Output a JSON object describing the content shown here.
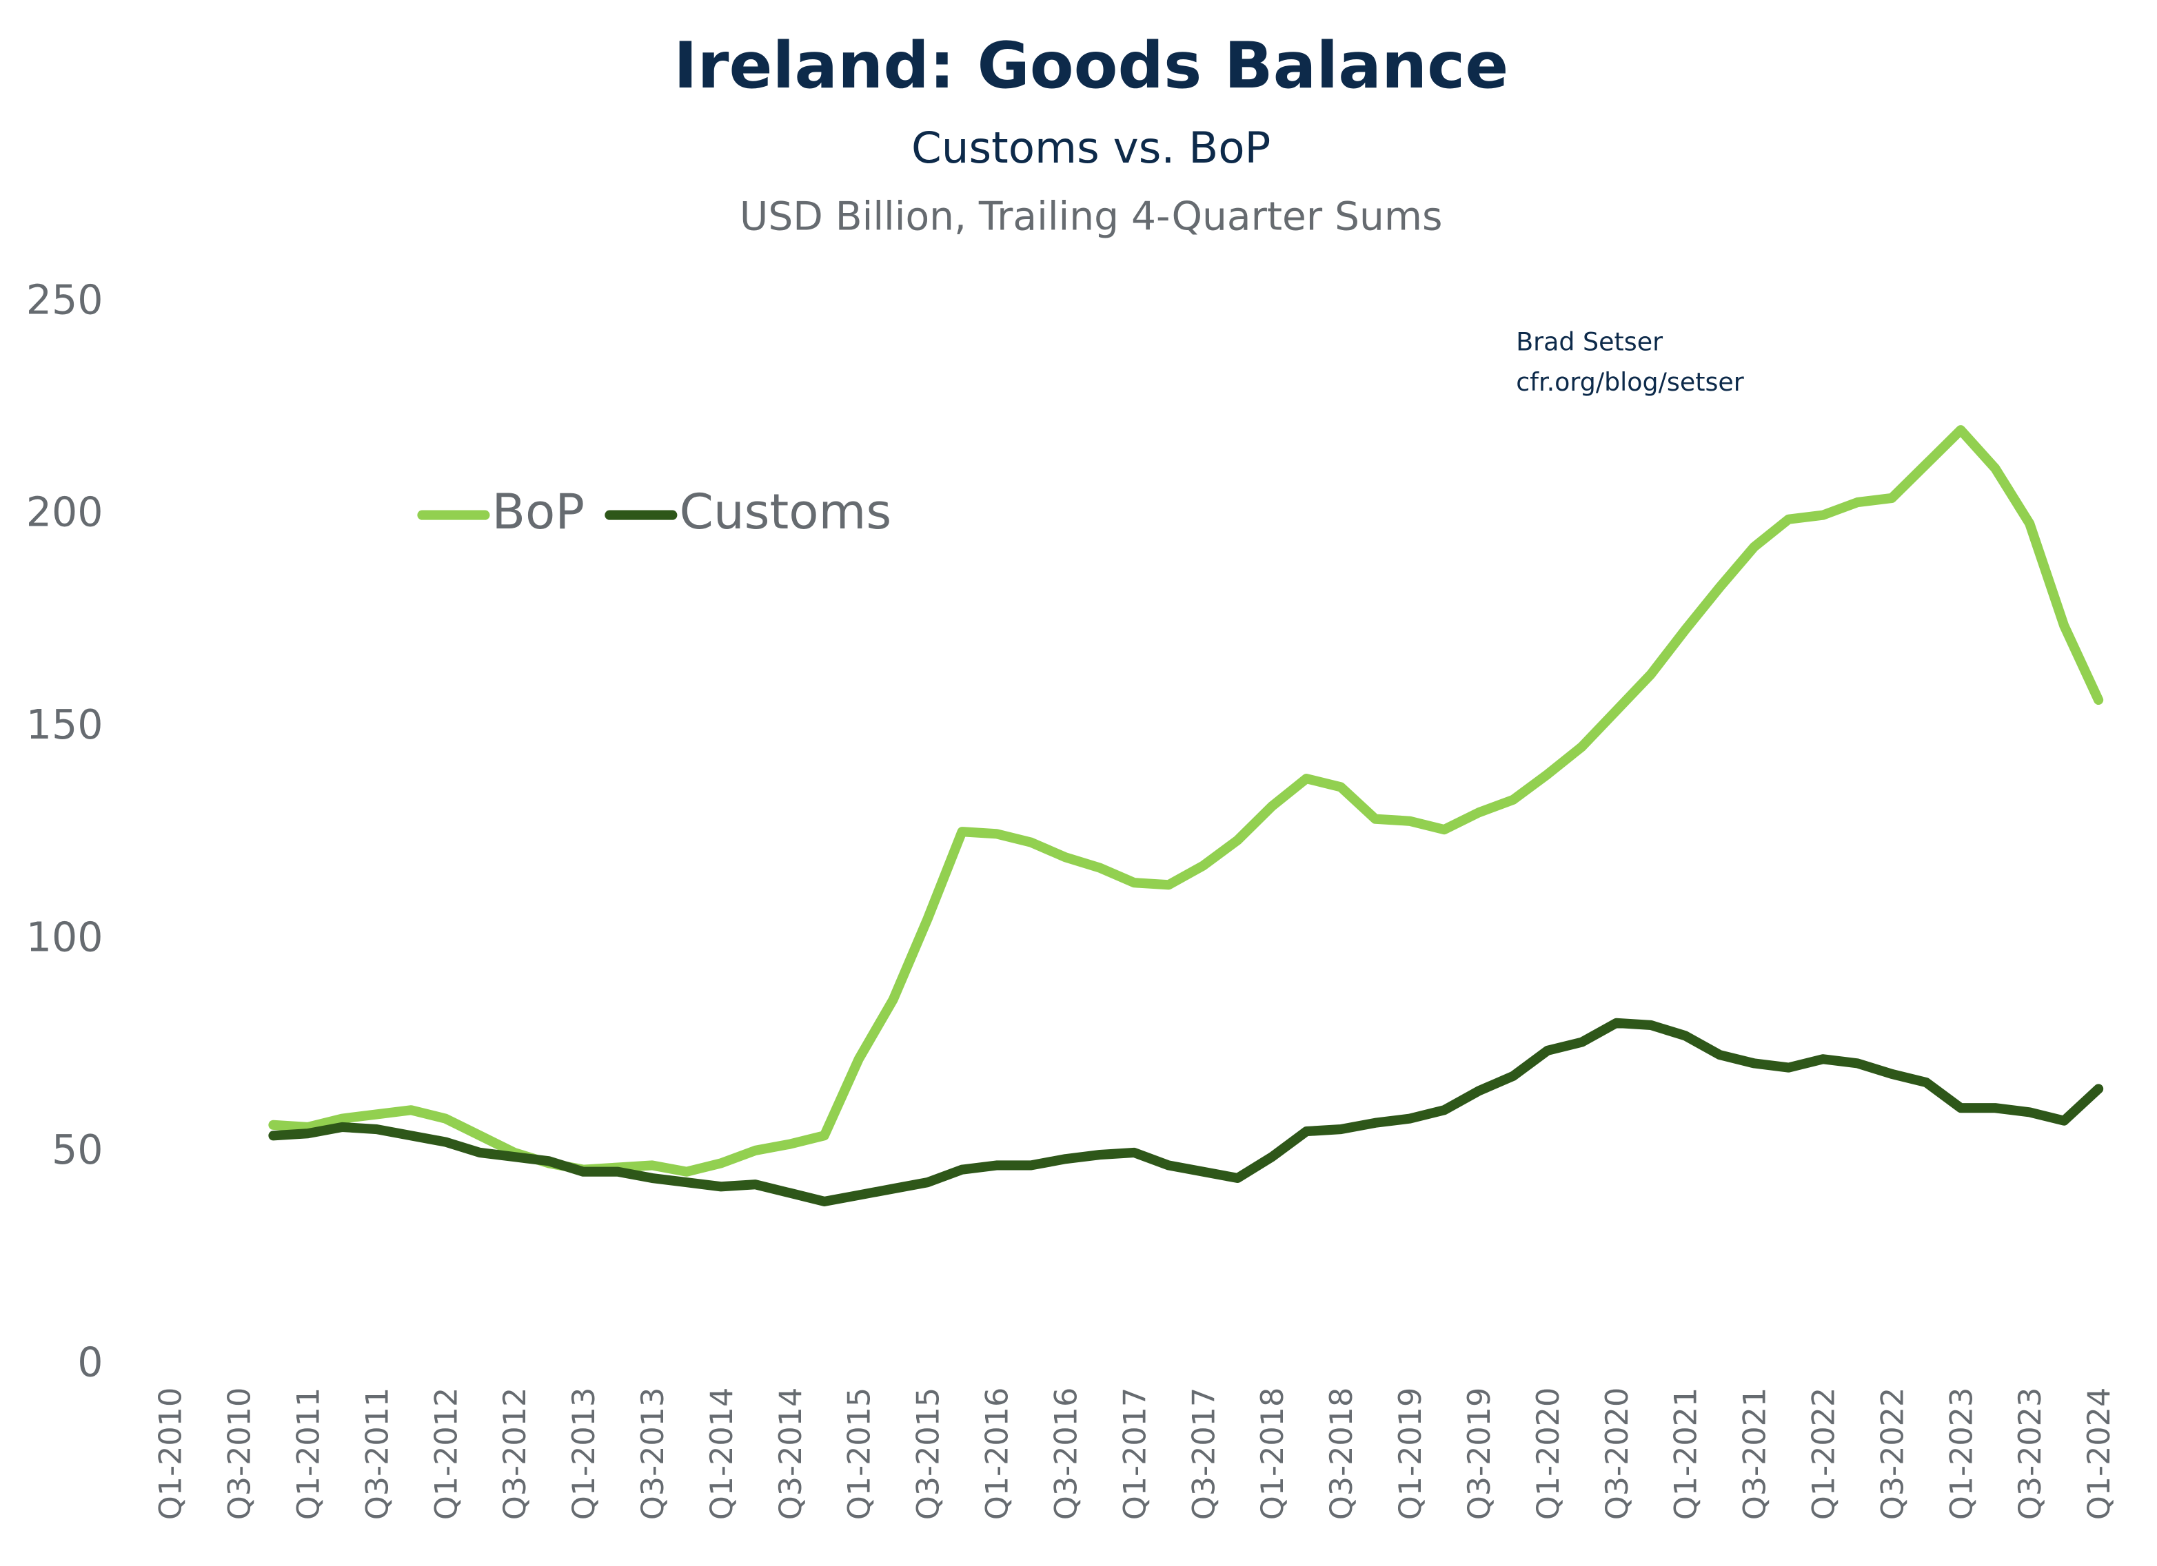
{
  "chart_data": {
    "type": "line",
    "title": "Ireland: Goods Balance",
    "subtitle": "Customs vs. BoP",
    "units": "USD Billion, Trailing 4-Quarter Sums",
    "annotations": [
      "Brad Setser",
      "cfr.org/blog/setser"
    ],
    "categories": [
      "Q1-2010",
      null,
      "Q3-2010",
      null,
      "Q1-2011",
      null,
      "Q3-2011",
      null,
      "Q1-2012",
      null,
      "Q3-2012",
      null,
      "Q1-2013",
      null,
      "Q3-2013",
      null,
      "Q1-2014",
      null,
      "Q3-2014",
      null,
      "Q1-2015",
      null,
      "Q3-2015",
      null,
      "Q1-2016",
      null,
      "Q3-2016",
      null,
      "Q1-2017",
      null,
      "Q3-2017",
      null,
      "Q1-2018",
      null,
      "Q3-2018",
      null,
      "Q1-2019",
      null,
      "Q3-2019",
      null,
      "Q1-2020",
      null,
      "Q3-2020",
      null,
      "Q1-2021",
      null,
      "Q3-2021",
      null,
      "Q1-2022",
      null,
      "Q3-2022",
      null,
      "Q1-2023",
      null,
      "Q3-2023",
      null,
      "Q1-2024"
    ],
    "series": [
      {
        "name": "BoP",
        "color": "#92d050",
        "values": [
          null,
          null,
          null,
          56.5,
          56,
          58,
          59,
          60,
          58,
          54,
          50,
          47.5,
          46,
          46.5,
          47,
          45.5,
          47.5,
          50.5,
          52,
          54,
          72,
          86,
          105,
          125.5,
          125,
          123,
          119.5,
          117,
          113.5,
          113,
          117.5,
          123.5,
          131.5,
          138,
          136,
          128.5,
          128,
          126,
          130,
          133,
          139,
          145.5,
          154,
          162.5,
          173,
          183,
          192.5,
          199,
          200,
          203,
          204,
          212,
          220,
          211,
          198,
          174,
          156.5
        ]
      },
      {
        "name": "Customs",
        "color": "#2e5719",
        "values": [
          null,
          null,
          null,
          54,
          54.5,
          56,
          55.5,
          54,
          52.5,
          50,
          49,
          48,
          45.5,
          45.5,
          44,
          43,
          42,
          42.5,
          40.5,
          38.5,
          40,
          41.5,
          43,
          46,
          47,
          47,
          48.5,
          49.5,
          50,
          47,
          45.5,
          44,
          49,
          55,
          55.5,
          57,
          58,
          60,
          64.5,
          68,
          74,
          76,
          80.5,
          80,
          77.5,
          73,
          71,
          70,
          72,
          71,
          68.5,
          66.5,
          60.5,
          60.5,
          59.5,
          57.5,
          65
        ]
      }
    ],
    "ylim": [
      0,
      250
    ],
    "yticks": [
      0,
      50,
      100,
      150,
      200,
      250
    ],
    "grid": false,
    "legend": "top-left"
  }
}
